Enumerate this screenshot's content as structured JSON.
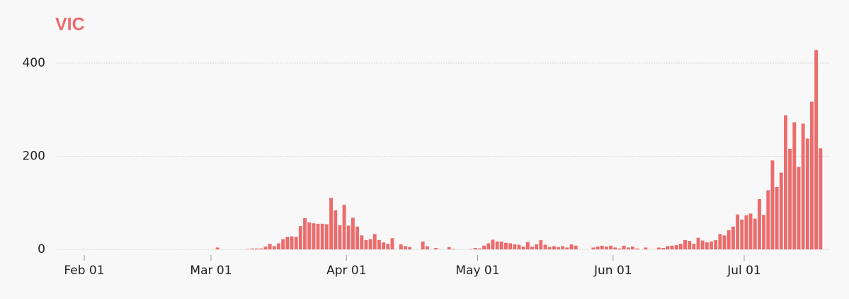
{
  "chart_data": {
    "type": "bar",
    "title": "VIC",
    "categories": [
      null,
      null,
      null,
      null,
      null,
      null,
      null,
      "Feb 01",
      null,
      null,
      null,
      null,
      null,
      null,
      null,
      null,
      null,
      null,
      null,
      null,
      null,
      null,
      null,
      null,
      null,
      null,
      null,
      null,
      null,
      null,
      null,
      null,
      null,
      null,
      null,
      null,
      "Mar 01",
      null,
      null,
      null,
      null,
      null,
      null,
      null,
      null,
      null,
      null,
      null,
      null,
      null,
      null,
      null,
      null,
      null,
      null,
      null,
      null,
      null,
      null,
      null,
      null,
      null,
      null,
      null,
      null,
      null,
      null,
      "Apr 01",
      null,
      null,
      null,
      null,
      null,
      null,
      null,
      null,
      null,
      null,
      null,
      null,
      null,
      null,
      null,
      null,
      null,
      null,
      null,
      null,
      null,
      null,
      null,
      null,
      null,
      null,
      null,
      null,
      null,
      "May 01",
      null,
      null,
      null,
      null,
      null,
      null,
      null,
      null,
      null,
      null,
      null,
      null,
      null,
      null,
      null,
      null,
      null,
      null,
      null,
      null,
      null,
      null,
      null,
      null,
      null,
      null,
      null,
      null,
      null,
      null,
      "Jun 01",
      null,
      null,
      null,
      null,
      null,
      null,
      null,
      null,
      null,
      null,
      null,
      null,
      null,
      null,
      null,
      null,
      null,
      null,
      null,
      null,
      null,
      null,
      null,
      null,
      null,
      null,
      null,
      null,
      null,
      "Jul 01",
      null,
      null,
      null,
      null,
      null,
      null,
      null,
      null,
      null,
      null,
      null,
      null,
      null,
      null,
      null,
      null,
      null
    ],
    "values": [
      0,
      0,
      0,
      0,
      0,
      0,
      0,
      0,
      0,
      0,
      0,
      0,
      0,
      0,
      0,
      0,
      0,
      0,
      0,
      0,
      0,
      0,
      0,
      0,
      0,
      0,
      0,
      0,
      0,
      0,
      0,
      0,
      0,
      0,
      0,
      0,
      0,
      4,
      0,
      0,
      0,
      0,
      0,
      0,
      1,
      2,
      2,
      2,
      6,
      12,
      7,
      13,
      22,
      27,
      28,
      27,
      50,
      67,
      58,
      56,
      55,
      55,
      54,
      111,
      84,
      52,
      96,
      51,
      68,
      49,
      30,
      20,
      22,
      33,
      20,
      15,
      12,
      24,
      0,
      11,
      7,
      5,
      0,
      0,
      17,
      7,
      0,
      3,
      0,
      0,
      5,
      1,
      0,
      0,
      0,
      1,
      3,
      2,
      8,
      13,
      21,
      17,
      17,
      14,
      13,
      11,
      10,
      6,
      16,
      6,
      11,
      20,
      10,
      5,
      7,
      5,
      7,
      4,
      11,
      8,
      0,
      0,
      0,
      4,
      6,
      8,
      6,
      8,
      4,
      2,
      8,
      4,
      6,
      2,
      0,
      4,
      0,
      0,
      4,
      3,
      7,
      8,
      9,
      12,
      20,
      18,
      12,
      25,
      19,
      15,
      17,
      20,
      33,
      30,
      41,
      49,
      75,
      64,
      73,
      77,
      66,
      108,
      74,
      127,
      191,
      134,
      165,
      288,
      216,
      273,
      177,
      270,
      238,
      317,
      428,
      217
    ],
    "color": "#ec6b6b",
    "ylim": [
      0,
      440
    ],
    "yticks": [
      0,
      200,
      400
    ],
    "grid": true
  }
}
